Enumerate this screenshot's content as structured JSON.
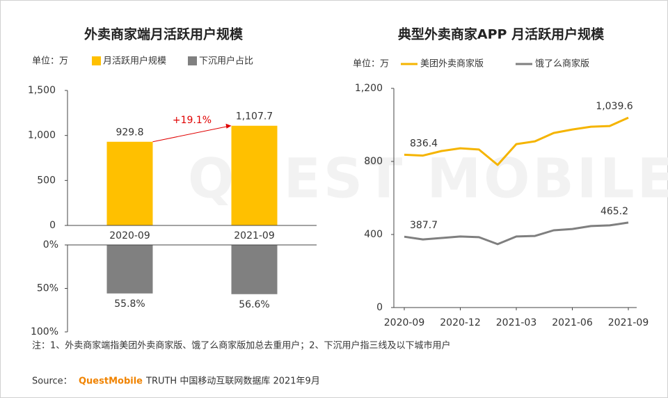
{
  "watermark": "QUEST MOBILE",
  "note": "注：1、外卖商家端指美团外卖商家版、饿了么商家版加总去重用户；2、下沉用户指三线及以下城市用户",
  "source": {
    "label": "Source：",
    "brand": "QuestMobile",
    "text": "TRUTH 中国移动互联网数据库 2021年9月"
  },
  "chart_data": [
    {
      "type": "bar",
      "title": "外卖商家端月活跃用户规模",
      "unit": "单位：万",
      "categories": [
        "2020-09",
        "2021-09"
      ],
      "series": [
        {
          "name": "月活跃用户规模",
          "color": "#ffc000",
          "values": [
            929.8,
            1107.7
          ],
          "value_labels": [
            "929.8",
            "1,107.7"
          ]
        },
        {
          "name": "下沉用户占比",
          "color": "#808080",
          "axis": "y2",
          "values": [
            55.8,
            56.6
          ],
          "value_labels": [
            "55.8%",
            "56.6%"
          ]
        }
      ],
      "ylim": [
        0,
        1500
      ],
      "yticks": [
        0,
        500,
        {
          "value": 1000,
          "label": "1,000"
        },
        {
          "value": 1500,
          "label": "1,500"
        }
      ],
      "y2lim": [
        0,
        100
      ],
      "y2ticks": [
        {
          "value": 0,
          "label": "0%"
        },
        {
          "value": 50,
          "label": "50%"
        },
        {
          "value": 100,
          "label": "100%"
        }
      ],
      "annotation": "+19.1%",
      "annotation_color": "#e00000"
    },
    {
      "type": "line",
      "title": "典型外卖商家APP 月活跃用户规模",
      "unit": "单位：万",
      "x": [
        "2020-09",
        "2020-10",
        "2020-11",
        "2020-12",
        "2021-01",
        "2021-02",
        "2021-03",
        "2021-04",
        "2021-05",
        "2021-06",
        "2021-07",
        "2021-08",
        "2021-09"
      ],
      "xticks": [
        "2020-09",
        "2020-12",
        "2021-03",
        "2021-06",
        "2021-09"
      ],
      "series": [
        {
          "name": "美团外卖商家版",
          "color": "#f5b400",
          "values": [
            836.4,
            832,
            857,
            872,
            865,
            781,
            895,
            910,
            956,
            975,
            990,
            994,
            1039.6
          ],
          "value_labels": [
            "836.4",
            null,
            null,
            null,
            null,
            null,
            null,
            null,
            null,
            null,
            null,
            null,
            "1,039.6"
          ]
        },
        {
          "name": "饿了么商家版",
          "color": "#7f7f7f",
          "values": [
            387.7,
            373,
            381,
            389,
            385,
            347,
            389,
            392,
            423,
            430,
            446,
            450,
            465.2
          ],
          "value_labels": [
            "387.7",
            null,
            null,
            null,
            null,
            null,
            null,
            null,
            null,
            null,
            null,
            null,
            "465.2"
          ]
        }
      ],
      "ylim": [
        0,
        1200
      ],
      "yticks": [
        0,
        400,
        800,
        {
          "value": 1200,
          "label": "1,200"
        }
      ]
    }
  ]
}
